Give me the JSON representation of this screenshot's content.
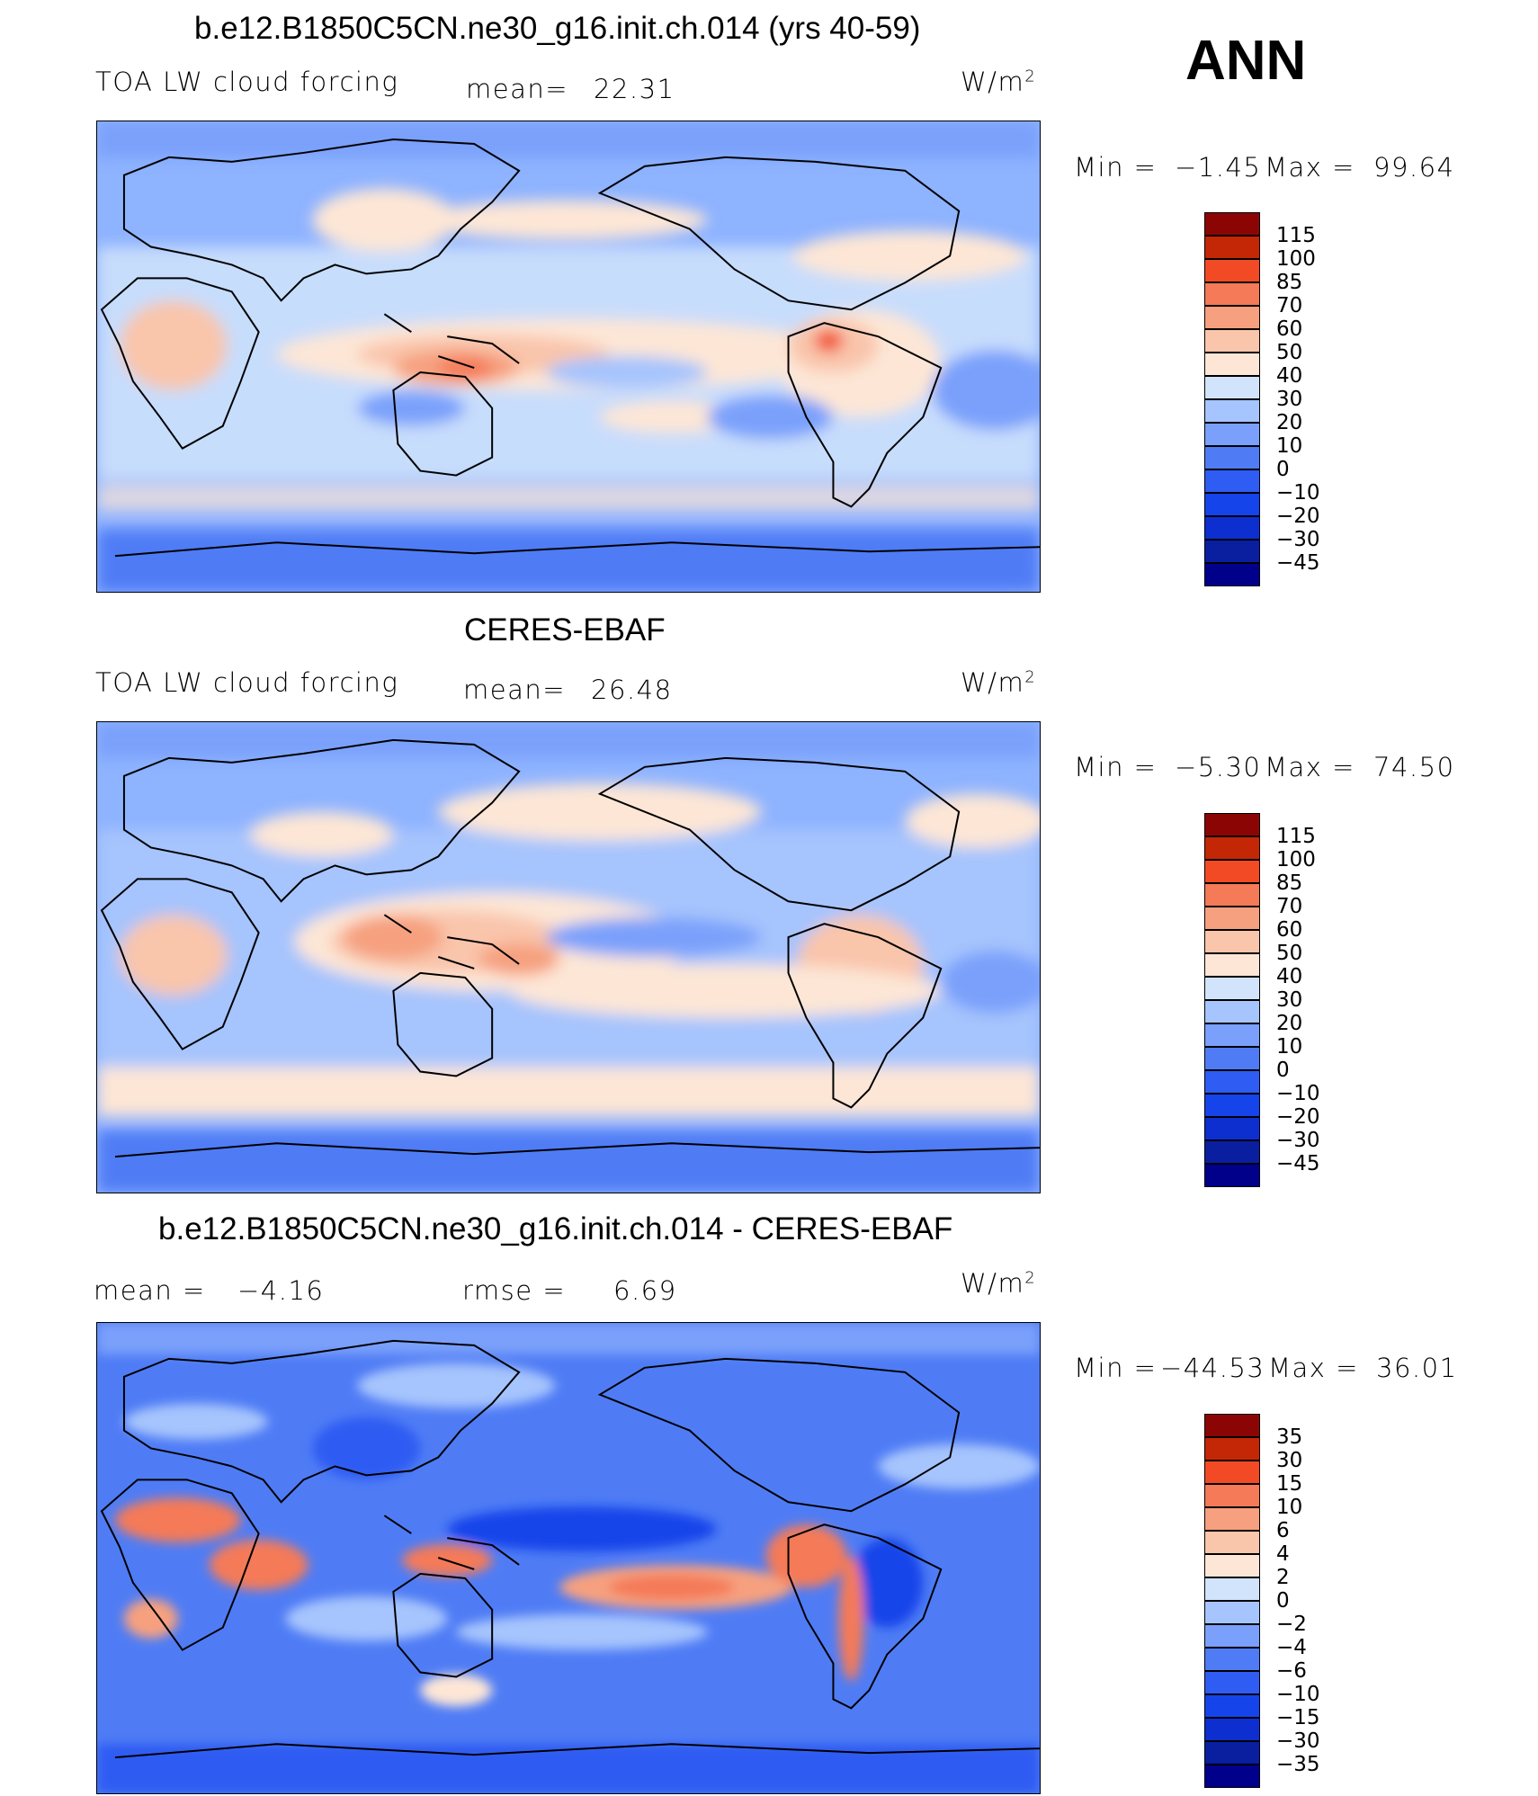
{
  "season": "ANN",
  "colors": {
    "land_outline": "#000000",
    "ocean_base": "#8eb3ff",
    "palette_full": [
      "#00008b",
      "#0a1ea0",
      "#0d2fd0",
      "#1544ea",
      "#2f5cf2",
      "#4f7cf5",
      "#7aa0fb",
      "#a6c4fd",
      "#d1e4fb",
      "#fde6d6",
      "#f9c5ab",
      "#f6a07f",
      "#f47a58",
      "#f24a24",
      "#c42705",
      "#8c0505"
    ]
  },
  "panels": [
    {
      "id": "model",
      "title": "b.e12.B1850C5CN.ne30_g16.init.ch.014 (yrs 40-59)",
      "variable": "TOA LW cloud forcing",
      "stat1_label": "mean=",
      "stat1_value": "22.31",
      "units_base": "W/m",
      "units_exp": "2",
      "minmax": {
        "min_label": "Min =",
        "min_value": "−1.45",
        "max_label": "Max =",
        "max_value": "99.64"
      },
      "colorbar_levels": [
        "115",
        "100",
        "85",
        "70",
        "60",
        "50",
        "40",
        "30",
        "20",
        "10",
        "0",
        "−10",
        "−20",
        "−30",
        "−45"
      ]
    },
    {
      "id": "obs",
      "title": "CERES-EBAF",
      "variable": "TOA LW cloud forcing",
      "stat1_label": "mean=",
      "stat1_value": "26.48",
      "units_base": "W/m",
      "units_exp": "2",
      "minmax": {
        "min_label": "Min =",
        "min_value": "−5.30",
        "max_label": "Max =",
        "max_value": "74.50"
      },
      "colorbar_levels": [
        "115",
        "100",
        "85",
        "70",
        "60",
        "50",
        "40",
        "30",
        "20",
        "10",
        "0",
        "−10",
        "−20",
        "−30",
        "−45"
      ]
    },
    {
      "id": "diff",
      "title": "b.e12.B1850C5CN.ne30_g16.init.ch.014 - CERES-EBAF",
      "stat1_label": "mean =",
      "stat1_value": "−4.16",
      "stat2_label": "rmse =",
      "stat2_value": "6.69",
      "units_base": "W/m",
      "units_exp": "2",
      "minmax": {
        "min_label": "Min =",
        "min_value": "−44.53",
        "max_label": "Max =",
        "max_value": "36.01"
      },
      "colorbar_levels": [
        "35",
        "30",
        "15",
        "10",
        "6",
        "4",
        "2",
        "0",
        "−2",
        "−4",
        "−6",
        "−10",
        "−15",
        "−30",
        "−35"
      ]
    }
  ]
}
